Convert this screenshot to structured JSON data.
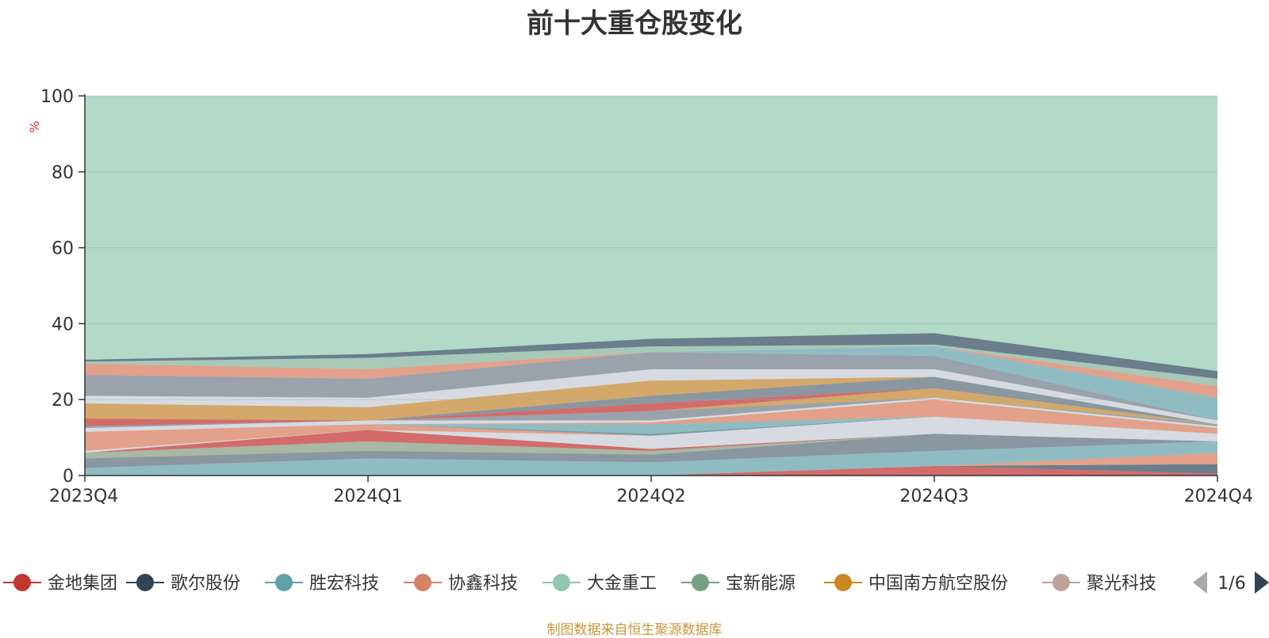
{
  "chart_data": {
    "type": "area",
    "title": "前十大重仓股变化",
    "ylabel": "%",
    "categories": [
      "2023Q4",
      "2024Q1",
      "2024Q2",
      "2024Q3",
      "2024Q4"
    ],
    "ylim": [
      0,
      100
    ],
    "yticks": [
      0,
      20,
      40,
      60,
      80,
      100
    ],
    "grid": true,
    "stacked": true,
    "other_fill": "#b3d9c8",
    "layers": [
      {
        "values": [
          0,
          0,
          0,
          2.5,
          0.5
        ],
        "color": "#d46b6b"
      },
      {
        "values": [
          0,
          0,
          0,
          0,
          2.5
        ],
        "color": "#6b7e8c"
      },
      {
        "values": [
          0,
          0,
          0,
          0,
          3
        ],
        "color": "#e3a08a"
      },
      {
        "values": [
          2,
          4.5,
          3.5,
          4,
          3
        ],
        "color": "#8fbcc2"
      },
      {
        "values": [
          2.5,
          2,
          2,
          4.5,
          0
        ],
        "color": "#8a96a0"
      },
      {
        "values": [
          1.5,
          2.5,
          1,
          0,
          0
        ],
        "color": "#a8b8a4"
      },
      {
        "values": [
          0,
          3,
          0.5,
          0,
          0
        ],
        "color": "#d46b6b"
      },
      {
        "values": [
          0.5,
          0,
          3.5,
          4.5,
          2
        ],
        "color": "#d7dbe1"
      },
      {
        "values": [
          2.5,
          1.5,
          0,
          0,
          0.5
        ],
        "color": "#e3a08a"
      },
      {
        "values": [
          0,
          0,
          0.5,
          0,
          0
        ],
        "color": "#7e9aa8"
      },
      {
        "values": [
          0,
          0,
          2.5,
          0,
          0
        ],
        "color": "#8fbcc2"
      },
      {
        "values": [
          2.5,
          0,
          0.5,
          4.5,
          1
        ],
        "color": "#e3a08a"
      },
      {
        "values": [
          1,
          1,
          0.5,
          0.5,
          0.5
        ],
        "color": "#d7dbe1"
      },
      {
        "values": [
          0.5,
          0,
          2.5,
          0,
          0.5
        ],
        "color": "#9aa2ac"
      },
      {
        "values": [
          0,
          0,
          0,
          2.5,
          0
        ],
        "color": "#d4a86a"
      },
      {
        "values": [
          2,
          0,
          2,
          0,
          0
        ],
        "color": "#d46b6b"
      },
      {
        "values": [
          0,
          0,
          2,
          3,
          0
        ],
        "color": "#8a96a0"
      },
      {
        "values": [
          4,
          3.5,
          4,
          0,
          0
        ],
        "color": "#d4a86a"
      },
      {
        "values": [
          2,
          2.5,
          3,
          2,
          1
        ],
        "color": "#d7dbe1"
      },
      {
        "values": [
          5.5,
          5,
          4.5,
          3.5,
          0
        ],
        "color": "#9aa2ac"
      },
      {
        "values": [
          0,
          0,
          0,
          2.5,
          6
        ],
        "color": "#8fbcc2"
      },
      {
        "values": [
          3,
          2.5,
          0,
          0,
          3
        ],
        "color": "#e3a08a"
      },
      {
        "values": [
          0.5,
          3,
          1.5,
          0.5,
          2
        ],
        "color": "#a8c8b8"
      },
      {
        "values": [
          0.5,
          1,
          2,
          3,
          2
        ],
        "color": "#6b7e8c"
      }
    ],
    "legend": {
      "placement": "bottom",
      "page": "1/6",
      "entries": [
        {
          "name": "金地集团",
          "color": "#c23531"
        },
        {
          "name": "歌尔股份",
          "color": "#2f4554"
        },
        {
          "name": "胜宏科技",
          "color": "#61a0a8"
        },
        {
          "name": "协鑫科技",
          "color": "#d48265"
        },
        {
          "name": "大金重工",
          "color": "#91c7ae"
        },
        {
          "name": "宝新能源",
          "color": "#749f83"
        },
        {
          "name": "中国南方航空股份",
          "color": "#ca8622"
        },
        {
          "name": "聚光科技",
          "color": "#bda29a"
        }
      ]
    }
  },
  "source_note": "制图数据来自恒生聚源数据库"
}
